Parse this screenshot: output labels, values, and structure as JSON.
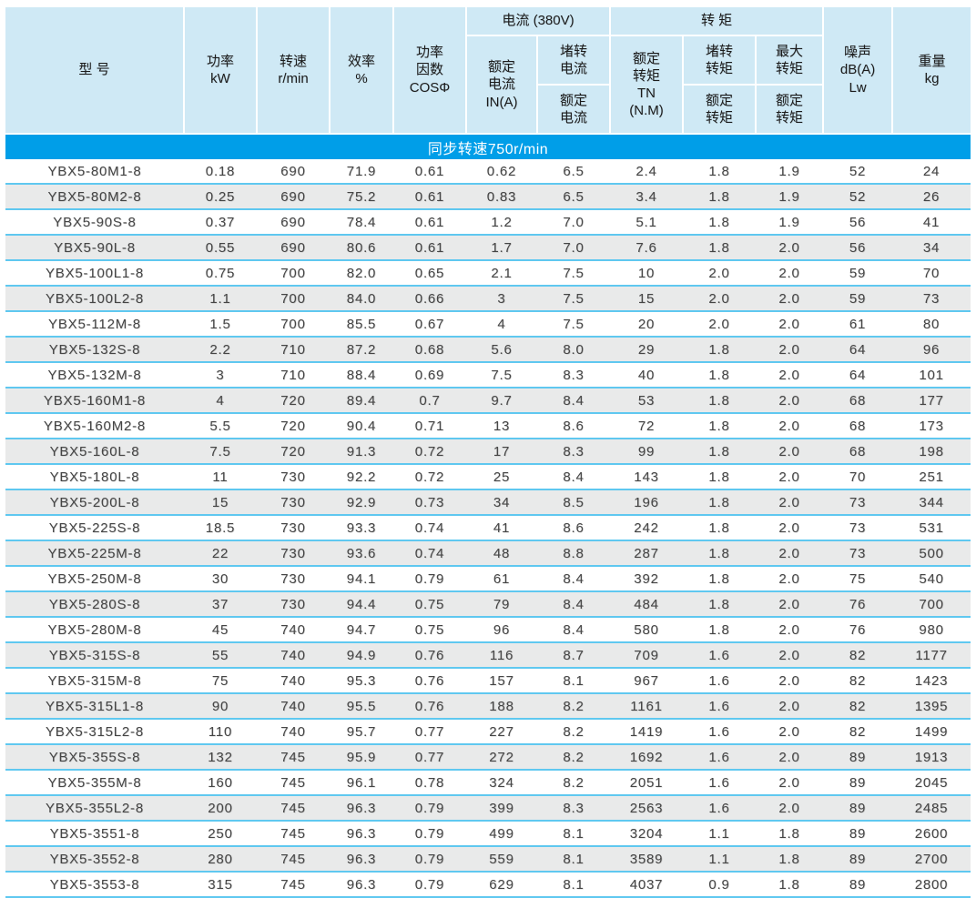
{
  "colors": {
    "header_bg": "#cfe9f5",
    "banner_bg": "#009ee8",
    "banner_text": "#ffffff",
    "row_alt_bg": "#e9eaea",
    "row_separator": "#5fc8f0",
    "data_text": "#454545",
    "header_text": "#1c1c1c"
  },
  "table": {
    "header": {
      "model": "型  号",
      "power": "功率\nkW",
      "speed": "转速\nr/min",
      "efficiency": "效率\n%",
      "power_factor": "功率\n因数\nCOSΦ",
      "current_group": "电流 (380V)",
      "torque_group": "转    矩",
      "rated_current": "额定\n电流\nIN(A)",
      "locked_current_top": "堵转\n电流",
      "locked_current_bottom": "额定\n电流",
      "rated_torque": "额定\n转矩\nTN\n(N.M)",
      "locked_torque_top": "堵转\n转矩",
      "locked_torque_bottom": "额定\n转矩",
      "max_torque_top": "最大\n转矩",
      "max_torque_bottom": "额定\n转矩",
      "noise": "噪声\ndB(A)\nLw",
      "weight": "重量\nkg"
    },
    "section_banner": "同步转速750r/min",
    "rows": [
      [
        "YBX5-80M1-8",
        "0.18",
        "690",
        "71.9",
        "0.61",
        "0.62",
        "6.5",
        "2.4",
        "1.8",
        "1.9",
        "52",
        "24"
      ],
      [
        "YBX5-80M2-8",
        "0.25",
        "690",
        "75.2",
        "0.61",
        "0.83",
        "6.5",
        "3.4",
        "1.8",
        "1.9",
        "52",
        "26"
      ],
      [
        "YBX5-90S-8",
        "0.37",
        "690",
        "78.4",
        "0.61",
        "1.2",
        "7.0",
        "5.1",
        "1.8",
        "1.9",
        "56",
        "41"
      ],
      [
        "YBX5-90L-8",
        "0.55",
        "690",
        "80.6",
        "0.61",
        "1.7",
        "7.0",
        "7.6",
        "1.8",
        "2.0",
        "56",
        "34"
      ],
      [
        "YBX5-100L1-8",
        "0.75",
        "700",
        "82.0",
        "0.65",
        "2.1",
        "7.5",
        "10",
        "2.0",
        "2.0",
        "59",
        "70"
      ],
      [
        "YBX5-100L2-8",
        "1.1",
        "700",
        "84.0",
        "0.66",
        "3",
        "7.5",
        "15",
        "2.0",
        "2.0",
        "59",
        "73"
      ],
      [
        "YBX5-112M-8",
        "1.5",
        "700",
        "85.5",
        "0.67",
        "4",
        "7.5",
        "20",
        "2.0",
        "2.0",
        "61",
        "80"
      ],
      [
        "YBX5-132S-8",
        "2.2",
        "710",
        "87.2",
        "0.68",
        "5.6",
        "8.0",
        "29",
        "1.8",
        "2.0",
        "64",
        "96"
      ],
      [
        "YBX5-132M-8",
        "3",
        "710",
        "88.4",
        "0.69",
        "7.5",
        "8.3",
        "40",
        "1.8",
        "2.0",
        "64",
        "101"
      ],
      [
        "YBX5-160M1-8",
        "4",
        "720",
        "89.4",
        "0.7",
        "9.7",
        "8.4",
        "53",
        "1.8",
        "2.0",
        "68",
        "177"
      ],
      [
        "YBX5-160M2-8",
        "5.5",
        "720",
        "90.4",
        "0.71",
        "13",
        "8.6",
        "72",
        "1.8",
        "2.0",
        "68",
        "173"
      ],
      [
        "YBX5-160L-8",
        "7.5",
        "720",
        "91.3",
        "0.72",
        "17",
        "8.3",
        "99",
        "1.8",
        "2.0",
        "68",
        "198"
      ],
      [
        "YBX5-180L-8",
        "11",
        "730",
        "92.2",
        "0.72",
        "25",
        "8.4",
        "143",
        "1.8",
        "2.0",
        "70",
        "251"
      ],
      [
        "YBX5-200L-8",
        "15",
        "730",
        "92.9",
        "0.73",
        "34",
        "8.5",
        "196",
        "1.8",
        "2.0",
        "73",
        "344"
      ],
      [
        "YBX5-225S-8",
        "18.5",
        "730",
        "93.3",
        "0.74",
        "41",
        "8.6",
        "242",
        "1.8",
        "2.0",
        "73",
        "531"
      ],
      [
        "YBX5-225M-8",
        "22",
        "730",
        "93.6",
        "0.74",
        "48",
        "8.8",
        "287",
        "1.8",
        "2.0",
        "73",
        "500"
      ],
      [
        "YBX5-250M-8",
        "30",
        "730",
        "94.1",
        "0.79",
        "61",
        "8.4",
        "392",
        "1.8",
        "2.0",
        "75",
        "540"
      ],
      [
        "YBX5-280S-8",
        "37",
        "730",
        "94.4",
        "0.75",
        "79",
        "8.4",
        "484",
        "1.8",
        "2.0",
        "76",
        "700"
      ],
      [
        "YBX5-280M-8",
        "45",
        "740",
        "94.7",
        "0.75",
        "96",
        "8.4",
        "580",
        "1.8",
        "2.0",
        "76",
        "980"
      ],
      [
        "YBX5-315S-8",
        "55",
        "740",
        "94.9",
        "0.76",
        "116",
        "8.7",
        "709",
        "1.6",
        "2.0",
        "82",
        "1177"
      ],
      [
        "YBX5-315M-8",
        "75",
        "740",
        "95.3",
        "0.76",
        "157",
        "8.1",
        "967",
        "1.6",
        "2.0",
        "82",
        "1423"
      ],
      [
        "YBX5-315L1-8",
        "90",
        "740",
        "95.5",
        "0.76",
        "188",
        "8.2",
        "1161",
        "1.6",
        "2.0",
        "82",
        "1395"
      ],
      [
        "YBX5-315L2-8",
        "110",
        "740",
        "95.7",
        "0.77",
        "227",
        "8.2",
        "1419",
        "1.6",
        "2.0",
        "82",
        "1499"
      ],
      [
        "YBX5-355S-8",
        "132",
        "745",
        "95.9",
        "0.77",
        "272",
        "8.2",
        "1692",
        "1.6",
        "2.0",
        "89",
        "1913"
      ],
      [
        "YBX5-355M-8",
        "160",
        "745",
        "96.1",
        "0.78",
        "324",
        "8.2",
        "2051",
        "1.6",
        "2.0",
        "89",
        "2045"
      ],
      [
        "YBX5-355L2-8",
        "200",
        "745",
        "96.3",
        "0.79",
        "399",
        "8.3",
        "2563",
        "1.6",
        "2.0",
        "89",
        "2485"
      ],
      [
        "YBX5-3551-8",
        "250",
        "745",
        "96.3",
        "0.79",
        "499",
        "8.1",
        "3204",
        "1.1",
        "1.8",
        "89",
        "2600"
      ],
      [
        "YBX5-3552-8",
        "280",
        "745",
        "96.3",
        "0.79",
        "559",
        "8.1",
        "3589",
        "1.1",
        "1.8",
        "89",
        "2700"
      ],
      [
        "YBX5-3553-8",
        "315",
        "745",
        "96.3",
        "0.79",
        "629",
        "8.1",
        "4037",
        "0.9",
        "1.8",
        "89",
        "2800"
      ]
    ]
  }
}
